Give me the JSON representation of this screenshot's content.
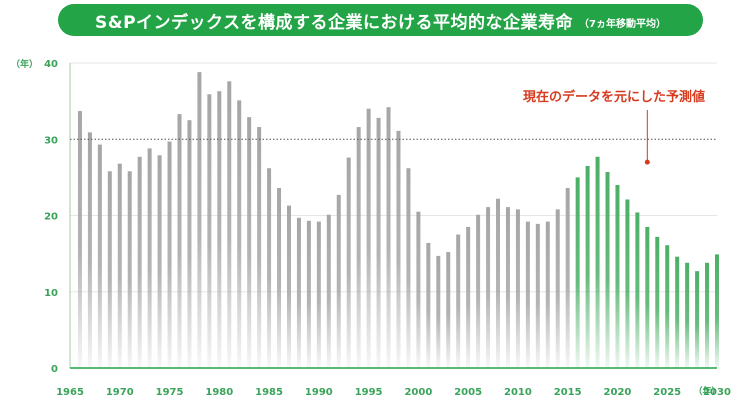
{
  "header": {
    "title": "S&Pインデックスを構成する企業における平均的な企業寿命",
    "subtitle": "（7ヵ年移動平均）"
  },
  "colors": {
    "accent": "#22a447",
    "past_bar": "#a6a6a6",
    "forecast_bar": "#4caf66",
    "annotation": "#d63b1f",
    "axis_text": "#3aa35a"
  },
  "chart_data": {
    "type": "bar",
    "title": "S&Pインデックスを構成する企業における平均的な企業寿命",
    "subtitle": "（7ヵ年移動平均）",
    "ylabel": "（年）",
    "xlabel": "（年）",
    "xlim": [
      1965,
      2030
    ],
    "ylim": [
      0,
      40
    ],
    "x_ticks": [
      1965,
      1970,
      1975,
      1980,
      1985,
      1990,
      1995,
      2000,
      2005,
      2010,
      2015,
      2020,
      2025,
      2030
    ],
    "y_ticks": [
      0,
      10,
      20,
      30,
      40
    ],
    "reference_line": 30,
    "annotation": {
      "text": "現在のデータを元にした予測値",
      "x": 2023,
      "y": 27
    },
    "forecast_from": 2016,
    "x": [
      1966,
      1967,
      1968,
      1969,
      1970,
      1971,
      1972,
      1973,
      1974,
      1975,
      1976,
      1977,
      1978,
      1979,
      1980,
      1981,
      1982,
      1983,
      1984,
      1985,
      1986,
      1987,
      1988,
      1989,
      1990,
      1991,
      1992,
      1993,
      1994,
      1995,
      1996,
      1997,
      1998,
      1999,
      2000,
      2001,
      2002,
      2003,
      2004,
      2005,
      2006,
      2007,
      2008,
      2009,
      2010,
      2011,
      2012,
      2013,
      2014,
      2015,
      2016,
      2017,
      2018,
      2019,
      2020,
      2021,
      2022,
      2023,
      2024,
      2025,
      2026,
      2027,
      2028,
      2029,
      2030
    ],
    "values": [
      33.7,
      30.9,
      29.3,
      25.8,
      26.8,
      25.8,
      27.7,
      28.8,
      27.9,
      29.7,
      33.3,
      32.5,
      38.8,
      35.9,
      36.3,
      37.6,
      35.1,
      32.9,
      31.6,
      26.2,
      23.6,
      21.3,
      19.7,
      19.3,
      19.2,
      20.1,
      22.7,
      27.6,
      31.6,
      34.0,
      32.8,
      34.2,
      31.1,
      26.2,
      20.5,
      16.4,
      14.7,
      15.2,
      17.5,
      18.5,
      20.1,
      21.1,
      22.2,
      21.1,
      20.8,
      19.2,
      18.9,
      19.2,
      20.8,
      23.6,
      25.0,
      26.5,
      27.7,
      25.7,
      24.0,
      22.1,
      20.4,
      18.5,
      17.2,
      16.1,
      14.6,
      13.8,
      12.7,
      13.8,
      14.9
    ]
  }
}
